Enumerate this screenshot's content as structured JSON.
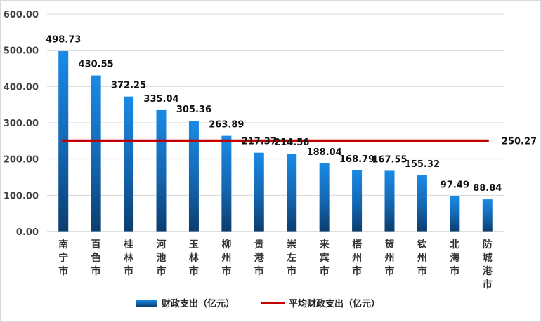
{
  "chart_data": {
    "type": "bar",
    "title": "",
    "xlabel": "",
    "ylabel": "",
    "ylim": [
      0,
      600
    ],
    "yticks": [
      "0.00",
      "100.00",
      "200.00",
      "300.00",
      "400.00",
      "500.00",
      "600.00"
    ],
    "grid": true,
    "legend_position": "bottom",
    "categories": [
      "南宁市",
      "百色市",
      "桂林市",
      "河池市",
      "玉林市",
      "柳州市",
      "贵港市",
      "崇左市",
      "来宾市",
      "梧州市",
      "贺州市",
      "钦州市",
      "北海市",
      "防城港市"
    ],
    "series": [
      {
        "name": "财政支出（亿元）",
        "type": "bar",
        "color": "#1f7fd4",
        "values": [
          498.73,
          430.55,
          372.25,
          335.04,
          305.36,
          263.89,
          217.37,
          214.56,
          188.04,
          168.79,
          167.55,
          155.32,
          97.49,
          88.84
        ],
        "labels": [
          "498.73",
          "430.55",
          "372.25",
          "335.04",
          "305.36",
          "263.89",
          "217.37",
          "214.56",
          "188.04",
          "168.79",
          "167.55",
          "155.32",
          "97.49",
          "88.84"
        ]
      },
      {
        "name": "平均财政支出（亿元）",
        "type": "line",
        "color": "#c00000",
        "value": 250.27,
        "label": "250.27"
      }
    ]
  }
}
